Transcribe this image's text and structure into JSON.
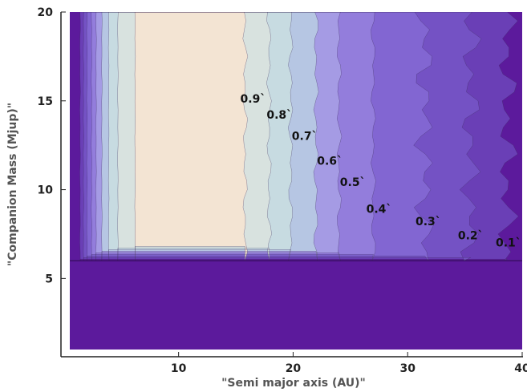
{
  "chart_data": {
    "type": "contour",
    "title": "",
    "xlabel": "\"Semi major axis (AU)\"",
    "ylabel": "\"Companion Mass (Mjup)\"",
    "xlim": [
      0.5,
      40
    ],
    "ylim": [
      1,
      20
    ],
    "x_ticks": [
      10,
      20,
      30,
      40
    ],
    "x_tick_labels": [
      "10",
      "20",
      "30",
      "40"
    ],
    "y_ticks": [
      5,
      10,
      15,
      20
    ],
    "y_tick_labels": [
      "5",
      "10",
      "15",
      "20"
    ],
    "mass_threshold": 6,
    "levels": [
      {
        "level": 0.0,
        "color": "#5c1a9c"
      },
      {
        "level": 0.1,
        "color": "#6a3fb6"
      },
      {
        "level": 0.2,
        "color": "#7452c4"
      },
      {
        "level": 0.3,
        "color": "#8266d2"
      },
      {
        "level": 0.4,
        "color": "#937ddc"
      },
      {
        "level": 0.5,
        "color": "#a59be4"
      },
      {
        "level": 0.6,
        "color": "#b6c6e3"
      },
      {
        "level": 0.7,
        "color": "#c7dbe1"
      },
      {
        "level": 0.8,
        "color": "#d8e2df"
      },
      {
        "level": 0.9,
        "color": "#f3e4d3"
      }
    ],
    "contours": [
      {
        "label": "0.9`",
        "level": 0.9,
        "x_left": 6.2,
        "x_right": 15.8,
        "label_pos": [
          16.5,
          14.9
        ]
      },
      {
        "label": "0.8`",
        "level": 0.8,
        "x_left": 4.7,
        "x_right": 17.9,
        "label_pos": [
          18.8,
          14.0
        ]
      },
      {
        "label": "0.7`",
        "level": 0.7,
        "x_left": 3.9,
        "x_right": 19.8,
        "label_pos": [
          21.0,
          12.8
        ]
      },
      {
        "label": "0.6`",
        "level": 0.6,
        "x_left": 3.3,
        "x_right": 22.0,
        "label_pos": [
          23.2,
          11.4
        ]
      },
      {
        "label": "0.5`",
        "level": 0.5,
        "x_left": 2.8,
        "x_right": 24.0,
        "label_pos": [
          25.2,
          10.2
        ]
      },
      {
        "label": "0.4`",
        "level": 0.4,
        "x_left": 2.4,
        "x_right": 27.0,
        "label_pos": [
          27.5,
          8.7
        ]
      },
      {
        "label": "0.3`",
        "level": 0.3,
        "x_left": 2.0,
        "x_right": 31.5,
        "label_pos": [
          31.8,
          8.0
        ]
      },
      {
        "label": "0.2`",
        "level": 0.2,
        "x_left": 1.7,
        "x_right": 35.5,
        "label_pos": [
          35.5,
          7.2
        ]
      },
      {
        "label": "0.1`",
        "level": 0.1,
        "x_left": 1.4,
        "x_right": 38.7,
        "label_pos": [
          38.8,
          6.8
        ]
      }
    ]
  }
}
